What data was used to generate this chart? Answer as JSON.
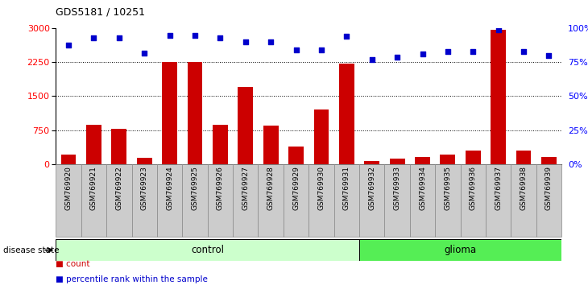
{
  "title": "GDS5181 / 10251",
  "samples": [
    "GSM769920",
    "GSM769921",
    "GSM769922",
    "GSM769923",
    "GSM769924",
    "GSM769925",
    "GSM769926",
    "GSM769927",
    "GSM769928",
    "GSM769929",
    "GSM769930",
    "GSM769931",
    "GSM769932",
    "GSM769933",
    "GSM769934",
    "GSM769935",
    "GSM769936",
    "GSM769937",
    "GSM769938",
    "GSM769939"
  ],
  "counts": [
    200,
    870,
    780,
    130,
    2250,
    2250,
    870,
    1700,
    840,
    380,
    1200,
    2220,
    70,
    110,
    150,
    200,
    300,
    2980,
    300,
    160
  ],
  "percentiles": [
    88,
    93,
    93,
    82,
    95,
    95,
    93,
    90,
    90,
    84,
    84,
    94,
    77,
    79,
    81,
    83,
    83,
    99,
    83,
    80
  ],
  "n_control": 12,
  "n_glioma": 8,
  "bar_color": "#cc0000",
  "dot_color": "#0000cc",
  "control_color": "#ccffcc",
  "glioma_color": "#55ee55",
  "xtick_bg_color": "#cccccc",
  "xtick_edge_color": "#888888",
  "ylim_left": [
    0,
    3000
  ],
  "ylim_right": [
    0,
    100
  ],
  "yticks_left": [
    0,
    750,
    1500,
    2250,
    3000
  ],
  "yticks_right": [
    0,
    25,
    50,
    75,
    100
  ],
  "ytick_labels_right": [
    "0%",
    "25%",
    "50%",
    "75%",
    "100%"
  ],
  "grid_values": [
    750,
    1500,
    2250
  ],
  "legend_count_label": "count",
  "legend_percentile_label": "percentile rank within the sample",
  "disease_state_label": "disease state",
  "control_label": "control",
  "glioma_label": "glioma"
}
